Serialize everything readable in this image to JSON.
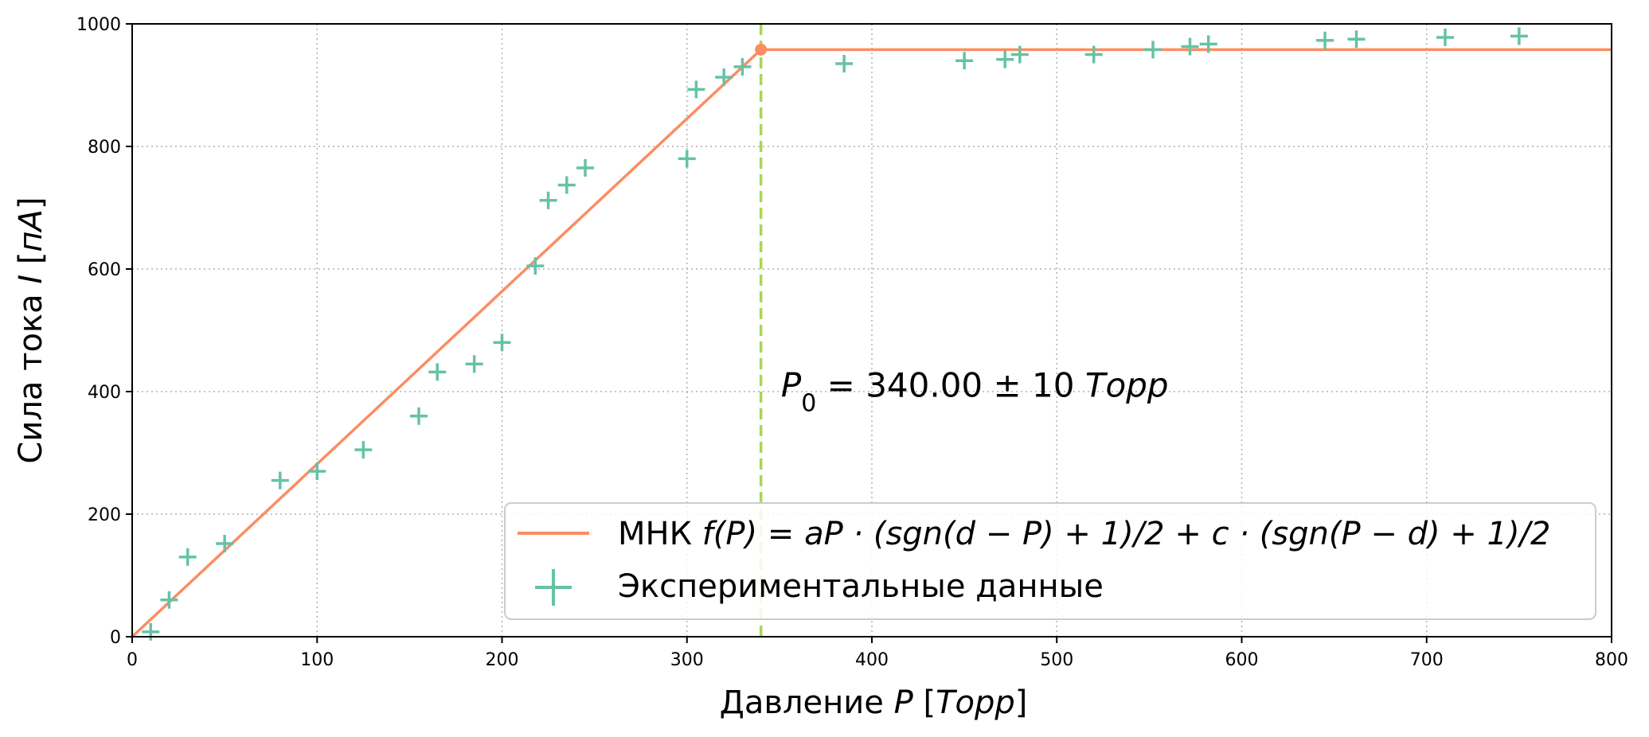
{
  "chart_data": {
    "type": "scatter",
    "xlabel": {
      "prefix": "Давление ",
      "var": "P",
      "unit_open": " [",
      "unit": "Торр",
      "unit_close": "]"
    },
    "ylabel": {
      "prefix": "Сила тока ",
      "var": "I",
      "unit_open": " [",
      "unit": "пА",
      "unit_close": "]"
    },
    "xlim": [
      0,
      800
    ],
    "ylim": [
      0,
      1000
    ],
    "xticks": [
      0,
      100,
      200,
      300,
      400,
      500,
      600,
      700,
      800
    ],
    "yticks": [
      0,
      200,
      400,
      600,
      800,
      1000
    ],
    "grid": true,
    "legend_position": "lower-right",
    "series": [
      {
        "name": "Экспериментальные данные",
        "kind": "points",
        "marker": "plus",
        "color": "#66c2a5",
        "x": [
          10,
          20,
          30,
          50,
          80,
          100,
          125,
          155,
          165,
          185,
          200,
          218,
          225,
          235,
          245,
          300,
          305,
          320,
          330,
          385,
          450,
          472,
          480,
          520,
          552,
          572,
          582,
          645,
          662,
          710,
          750
        ],
        "y": [
          8,
          60,
          130,
          152,
          255,
          270,
          305,
          360,
          432,
          445,
          480,
          605,
          712,
          737,
          765,
          780,
          893,
          913,
          930,
          935,
          940,
          942,
          950,
          950,
          958,
          963,
          967,
          973,
          975,
          978,
          980
        ]
      },
      {
        "name": "МНК",
        "kind": "fit",
        "color": "#fc8d62",
        "x": [
          0,
          340,
          800
        ],
        "y": [
          0,
          958,
          958
        ],
        "knee": {
          "x": 340,
          "y": 958
        }
      }
    ],
    "vline": {
      "x": 340,
      "color": "#a6d854",
      "style": "dashed"
    },
    "annotation": {
      "x": 350,
      "y": 410,
      "var": "P",
      "sub": "0",
      "rest": " = 340.00 ± 10 ",
      "unit": "Торр"
    },
    "legend": {
      "fit_prefix": "МНК ",
      "fit_formula": "f(P) = aP · (sgn(d − P) + 1)/2 + c · (sgn(P − d) + 1)/2",
      "data_label": "Экспериментальные данные"
    }
  }
}
